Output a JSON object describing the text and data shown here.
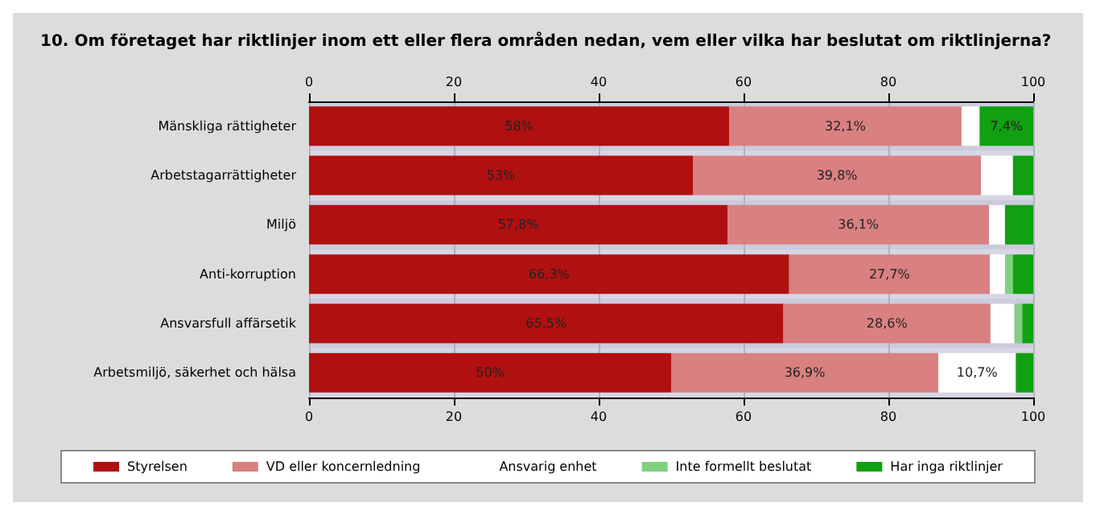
{
  "chart_data": {
    "type": "bar",
    "orientation": "horizontal",
    "stacked": true,
    "title": "10. Om företaget har riktlinjer inom ett eller flera områden nedan, vem eller vilka har beslutat om riktlinjerna?",
    "categories": [
      "Mänskliga rättigheter",
      "Arbetstagarrättigheter",
      "Miljö",
      "Anti-korruption",
      "Ansvarsfull affärsetik",
      "Arbetsmiljö, säkerhet och hälsa"
    ],
    "series": [
      {
        "name": "Styrelsen",
        "color": "#b01010",
        "values": [
          58,
          53,
          57.8,
          66.3,
          65.5,
          50
        ],
        "value_labels": [
          "58%",
          "53%",
          "57,8%",
          "66,3%",
          "65,5%",
          "50%"
        ]
      },
      {
        "name": "VD eller koncernledning",
        "color": "#d98080",
        "values": [
          32.1,
          39.8,
          36.1,
          27.7,
          28.6,
          36.9
        ],
        "value_labels": [
          "32,1%",
          "39,8%",
          "36,1%",
          "27,7%",
          "28,6%",
          "36,9%"
        ]
      },
      {
        "name": "Ansvarig enhet",
        "color": "#ffffff",
        "values": [
          2.5,
          4.4,
          2.2,
          2.1,
          3.3,
          10.7
        ],
        "value_labels": [
          null,
          null,
          null,
          null,
          null,
          "10,7%"
        ]
      },
      {
        "name": "Inte formellt beslutat",
        "color": "#80d080",
        "values": [
          0,
          0,
          0,
          1.1,
          1.1,
          0
        ],
        "value_labels": [
          null,
          null,
          null,
          null,
          null,
          null
        ]
      },
      {
        "name": "Har inga riktlinjer",
        "color": "#10a010",
        "values": [
          7.4,
          2.8,
          3.9,
          2.8,
          1.5,
          2.4
        ],
        "value_labels": [
          "7,4%",
          null,
          null,
          null,
          null,
          null
        ]
      }
    ],
    "xlim": [
      0,
      100
    ],
    "xticks": [
      0,
      20,
      40,
      60,
      80,
      100
    ],
    "x2lim": [
      0,
      100
    ],
    "x2ticks": [
      0,
      20,
      40,
      60,
      80,
      100
    ],
    "grid": "x",
    "legend": "bottom"
  }
}
